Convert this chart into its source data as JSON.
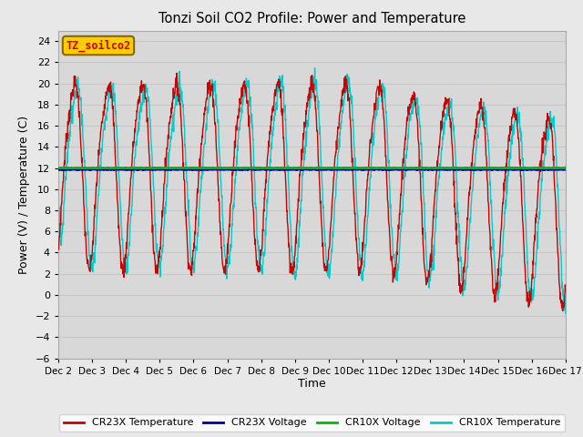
{
  "title": "Tonzi Soil CO2 Profile: Power and Temperature",
  "ylabel": "Power (V) / Temperature (C)",
  "xlabel": "Time",
  "ylim": [
    -6,
    25
  ],
  "yticks": [
    -6,
    -4,
    -2,
    0,
    2,
    4,
    6,
    8,
    10,
    12,
    14,
    16,
    18,
    20,
    22,
    24
  ],
  "annotation_text": "TZ_soilco2",
  "annotation_color": "#cc0000",
  "annotation_bg": "#ffcc00",
  "cr10x_voltage_value": 12.0,
  "cr23x_voltage_value": 11.85,
  "cr10x_voltage_color": "#00bb00",
  "cr23x_temp_color": "#cc0000",
  "cr23x_volt_color": "#000099",
  "cr10x_temp_color": "#00cccc",
  "background_color": "#dcdcdc",
  "plot_bg_color": "#d8d8d8",
  "grid_color": "#c8c8c8",
  "fig_bg_color": "#e8e8e8",
  "legend_labels": [
    "CR23X Temperature",
    "CR23X Voltage",
    "CR10X Voltage",
    "CR10X Temperature"
  ],
  "legend_colors": [
    "#cc0000",
    "#000099",
    "#00bb00",
    "#00cccc"
  ]
}
